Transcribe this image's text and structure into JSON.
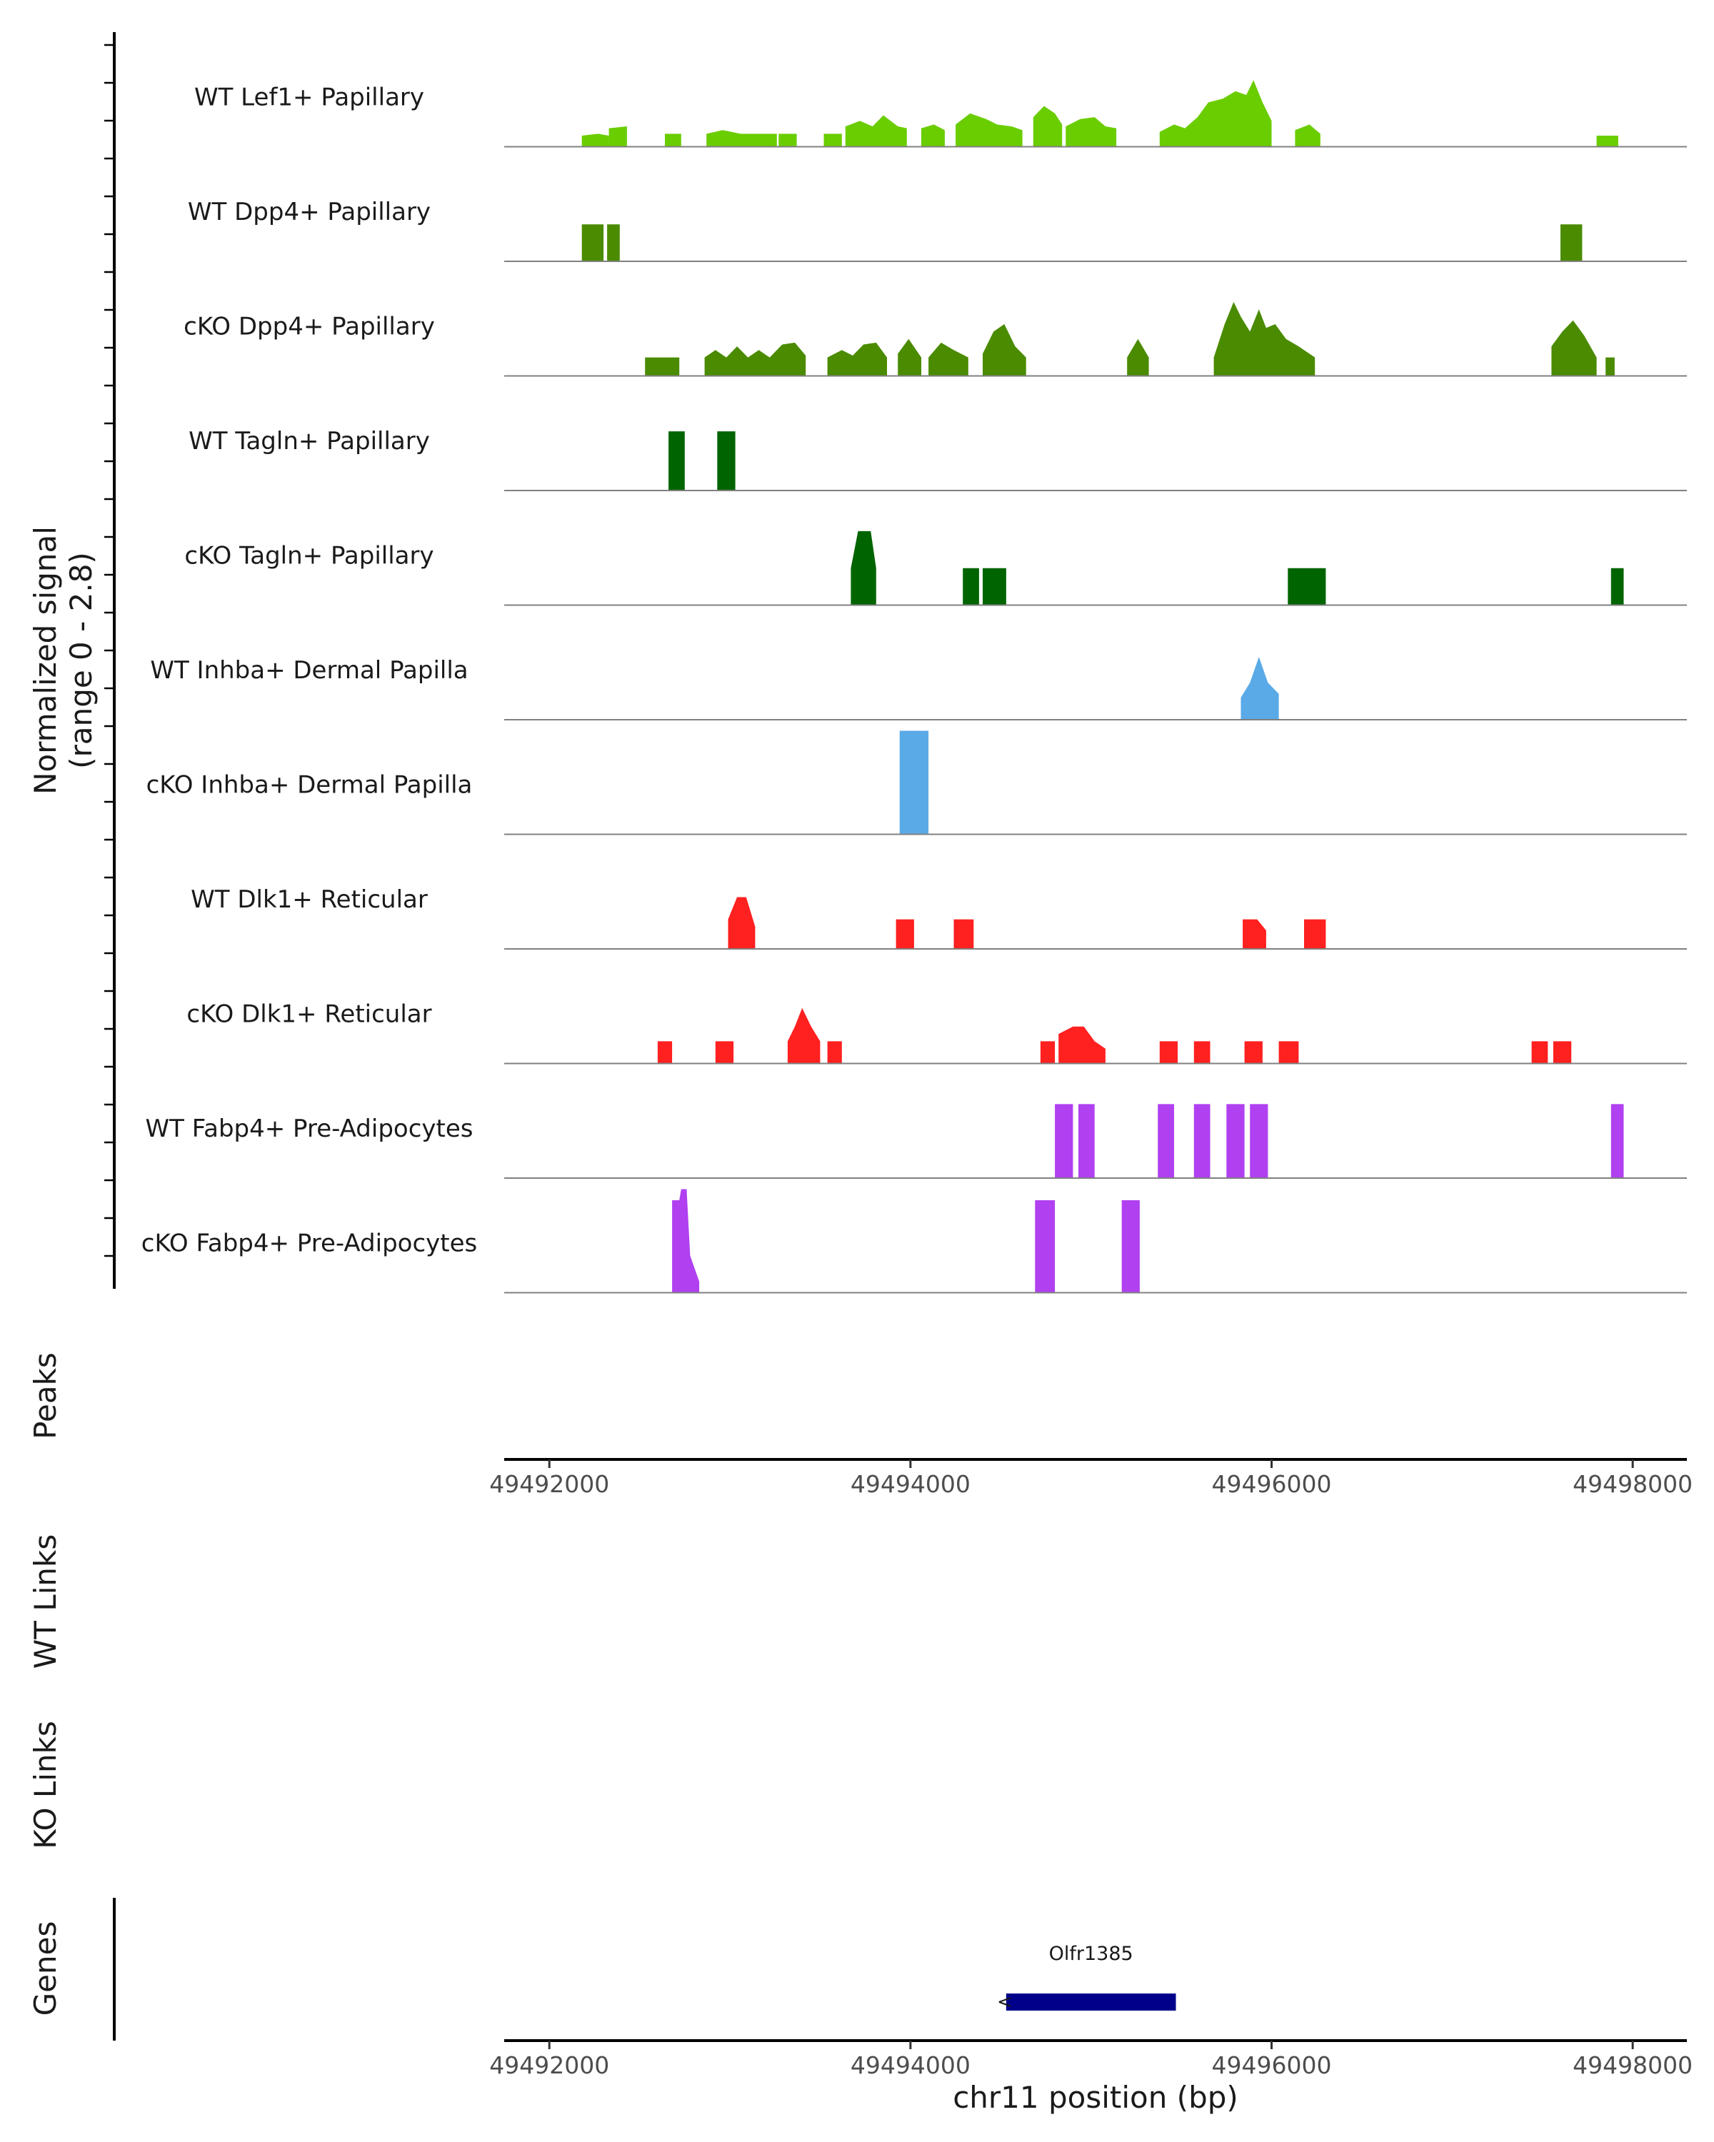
{
  "chart_data": {
    "type": "area",
    "title": "",
    "ylabel": "Normalized signal",
    "ylabel_range": "(range 0 - 2.8)",
    "ylim": [
      0,
      2.8
    ],
    "xlabel": "chr11 position (bp)",
    "xlim": [
      49491750,
      49498300
    ],
    "x_ticks": [
      49492000,
      49494000,
      49496000,
      49498000
    ],
    "x_tick_labels": [
      "49492000",
      "49494000",
      "49496000",
      "49498000"
    ],
    "colors": {
      "lef1": "#6ACD00",
      "dpp4": "#4A8B00",
      "tagln": "#006400",
      "inhba": "#5AAAE8",
      "dlk1": "#FF2020",
      "fabp4": "#B040F0",
      "gene": "#00008B",
      "baseline": "#808080"
    },
    "tracks": [
      {
        "name": "WT Lef1+ Papillary",
        "color_key": "lef1",
        "segments": [
          [
            [
              49492180,
              0.3
            ],
            [
              49492270,
              0.35
            ],
            [
              49492330,
              0.3
            ]
          ],
          [
            [
              49492330,
              0.5
            ],
            [
              49492430,
              0.55
            ]
          ],
          [
            [
              49492640,
              0.35
            ],
            [
              49492730,
              0.35
            ]
          ],
          [
            [
              49492870,
              0.35
            ],
            [
              49492960,
              0.45
            ],
            [
              49493060,
              0.35
            ],
            [
              49493180,
              0.35
            ],
            [
              49493260,
              0.35
            ]
          ],
          [
            [
              49493270,
              0.35
            ],
            [
              49493370,
              0.35
            ]
          ],
          [
            [
              49493520,
              0.35
            ],
            [
              49493620,
              0.35
            ]
          ],
          [
            [
              49493640,
              0.55
            ],
            [
              49493720,
              0.7
            ],
            [
              49493790,
              0.55
            ],
            [
              49493850,
              0.85
            ],
            [
              49493930,
              0.55
            ],
            [
              49493980,
              0.5
            ]
          ],
          [
            [
              49494060,
              0.5
            ],
            [
              49494130,
              0.6
            ],
            [
              49494190,
              0.45
            ]
          ],
          [
            [
              49494250,
              0.6
            ],
            [
              49494330,
              0.9
            ],
            [
              49494420,
              0.75
            ],
            [
              49494480,
              0.6
            ],
            [
              49494560,
              0.55
            ],
            [
              49494620,
              0.45
            ]
          ],
          [
            [
              49494680,
              0.8
            ],
            [
              49494740,
              1.1
            ],
            [
              49494800,
              0.9
            ],
            [
              49494840,
              0.6
            ]
          ],
          [
            [
              49494860,
              0.55
            ],
            [
              49494940,
              0.75
            ],
            [
              49495020,
              0.8
            ],
            [
              49495080,
              0.55
            ],
            [
              49495140,
              0.5
            ]
          ],
          [
            [
              49495380,
              0.4
            ],
            [
              49495460,
              0.6
            ],
            [
              49495520,
              0.5
            ],
            [
              49495590,
              0.8
            ],
            [
              49495650,
              1.2
            ],
            [
              49495730,
              1.3
            ],
            [
              49495800,
              1.5
            ],
            [
              49495860,
              1.4
            ],
            [
              49495900,
              1.8
            ],
            [
              49495950,
              1.2
            ],
            [
              49496000,
              0.7
            ]
          ],
          [
            [
              49496130,
              0.45
            ],
            [
              49496210,
              0.6
            ],
            [
              49496270,
              0.35
            ]
          ],
          [
            [
              49497800,
              0.3
            ],
            [
              49497920,
              0.3
            ]
          ]
        ]
      },
      {
        "name": "WT Dpp4+ Papillary",
        "color_key": "dpp4",
        "segments": [
          [
            [
              49492180,
              1.0
            ],
            [
              49492300,
              1.0
            ]
          ],
          [
            [
              49492320,
              1.0
            ],
            [
              49492390,
              1.0
            ]
          ],
          [
            [
              49497600,
              1.0
            ],
            [
              49497720,
              1.0
            ]
          ]
        ]
      },
      {
        "name": "cKO Dpp4+ Papillary",
        "color_key": "dpp4",
        "segments": [
          [
            [
              49492530,
              0.5
            ],
            [
              49492720,
              0.5
            ]
          ],
          [
            [
              49492860,
              0.5
            ],
            [
              49492920,
              0.7
            ],
            [
              49492980,
              0.5
            ],
            [
              49493040,
              0.8
            ],
            [
              49493100,
              0.5
            ],
            [
              49493160,
              0.7
            ],
            [
              49493220,
              0.5
            ],
            [
              49493290,
              0.85
            ],
            [
              49493360,
              0.9
            ],
            [
              49493420,
              0.55
            ]
          ],
          [
            [
              49493540,
              0.5
            ],
            [
              49493620,
              0.7
            ],
            [
              49493680,
              0.55
            ],
            [
              49493740,
              0.85
            ],
            [
              49493810,
              0.9
            ],
            [
              49493870,
              0.5
            ]
          ],
          [
            [
              49493930,
              0.6
            ],
            [
              49493990,
              1.0
            ],
            [
              49494060,
              0.5
            ]
          ],
          [
            [
              49494100,
              0.5
            ],
            [
              49494170,
              0.9
            ],
            [
              49494240,
              0.7
            ],
            [
              49494320,
              0.5
            ]
          ],
          [
            [
              49494400,
              0.6
            ],
            [
              49494460,
              1.2
            ],
            [
              49494520,
              1.4
            ],
            [
              49494580,
              0.8
            ],
            [
              49494640,
              0.5
            ]
          ],
          [
            [
              49495200,
              0.5
            ],
            [
              49495260,
              1.0
            ],
            [
              49495320,
              0.5
            ]
          ],
          [
            [
              49495680,
              0.5
            ],
            [
              49495740,
              1.4
            ],
            [
              49495790,
              2.0
            ],
            [
              49495830,
              1.6
            ],
            [
              49495880,
              1.2
            ],
            [
              49495930,
              1.8
            ],
            [
              49495970,
              1.3
            ],
            [
              49496020,
              1.4
            ],
            [
              49496080,
              1.0
            ],
            [
              49496150,
              0.8
            ],
            [
              49496240,
              0.5
            ]
          ],
          [
            [
              49497550,
              0.8
            ],
            [
              49497610,
              1.2
            ],
            [
              49497670,
              1.5
            ],
            [
              49497730,
              1.1
            ],
            [
              49497800,
              0.5
            ]
          ],
          [
            [
              49497850,
              0.5
            ],
            [
              49497900,
              0.5
            ]
          ]
        ]
      },
      {
        "name": "WT Tagln+ Papillary",
        "color_key": "tagln",
        "segments": [
          [
            [
              49492660,
              1.6
            ],
            [
              49492750,
              1.6
            ]
          ],
          [
            [
              49492930,
              1.6
            ],
            [
              49493030,
              1.6
            ]
          ]
        ]
      },
      {
        "name": "cKO Tagln+ Papillary",
        "color_key": "tagln",
        "segments": [
          [
            [
              49493670,
              1.0
            ],
            [
              49493710,
              2.0
            ],
            [
              49493780,
              2.0
            ],
            [
              49493810,
              1.0
            ]
          ],
          [
            [
              49494290,
              1.0
            ],
            [
              49494380,
              1.0
            ]
          ],
          [
            [
              49494400,
              1.0
            ],
            [
              49494530,
              1.0
            ]
          ],
          [
            [
              49496090,
              1.0
            ],
            [
              49496300,
              1.0
            ]
          ],
          [
            [
              49497880,
              1.0
            ],
            [
              49497950,
              1.0
            ]
          ]
        ]
      },
      {
        "name": "WT Inhba+ Dermal Papilla",
        "color_key": "inhba",
        "segments": [
          [
            [
              49495830,
              0.6
            ],
            [
              49495880,
              1.0
            ],
            [
              49495930,
              1.7
            ],
            [
              49495980,
              1.0
            ],
            [
              49496040,
              0.7
            ]
          ]
        ]
      },
      {
        "name": "cKO Inhba+ Dermal Papilla",
        "color_key": "inhba",
        "segments": [
          [
            [
              49493940,
              2.8
            ],
            [
              49494100,
              2.8
            ]
          ]
        ]
      },
      {
        "name": "WT Dlk1+ Reticular",
        "color_key": "dlk1",
        "segments": [
          [
            [
              49492990,
              0.8
            ],
            [
              49493040,
              1.4
            ],
            [
              49493090,
              1.4
            ],
            [
              49493140,
              0.6
            ]
          ],
          [
            [
              49493920,
              0.8
            ],
            [
              49494020,
              0.8
            ]
          ],
          [
            [
              49494240,
              0.8
            ],
            [
              49494350,
              0.8
            ]
          ],
          [
            [
              49495840,
              0.8
            ],
            [
              49495920,
              0.8
            ],
            [
              49495970,
              0.5
            ]
          ],
          [
            [
              49496180,
              0.8
            ],
            [
              49496300,
              0.8
            ]
          ]
        ]
      },
      {
        "name": "cKO Dlk1+ Reticular",
        "color_key": "dlk1",
        "segments": [
          [
            [
              49492600,
              0.6
            ],
            [
              49492680,
              0.6
            ]
          ],
          [
            [
              49492920,
              0.6
            ],
            [
              49493020,
              0.6
            ]
          ],
          [
            [
              49493320,
              0.6
            ],
            [
              49493360,
              1.0
            ],
            [
              49493400,
              1.5
            ],
            [
              49493450,
              1.0
            ],
            [
              49493500,
              0.6
            ]
          ],
          [
            [
              49493540,
              0.6
            ],
            [
              49493620,
              0.6
            ]
          ],
          [
            [
              49494720,
              0.6
            ],
            [
              49494800,
              0.6
            ]
          ],
          [
            [
              49494820,
              0.8
            ],
            [
              49494900,
              1.0
            ],
            [
              49494960,
              1.0
            ],
            [
              49495020,
              0.6
            ],
            [
              49495080,
              0.4
            ]
          ],
          [
            [
              49495380,
              0.6
            ],
            [
              49495480,
              0.6
            ]
          ],
          [
            [
              49495570,
              0.6
            ],
            [
              49495660,
              0.6
            ]
          ],
          [
            [
              49495850,
              0.6
            ],
            [
              49495950,
              0.6
            ]
          ],
          [
            [
              49496040,
              0.6
            ],
            [
              49496150,
              0.6
            ]
          ],
          [
            [
              49497440,
              0.6
            ],
            [
              49497530,
              0.6
            ]
          ],
          [
            [
              49497560,
              0.6
            ],
            [
              49497660,
              0.6
            ]
          ]
        ]
      },
      {
        "name": "WT Fabp4+ Pre-Adipocytes",
        "color_key": "fabp4",
        "segments": [
          [
            [
              49494800,
              2.0
            ],
            [
              49494900,
              2.0
            ]
          ],
          [
            [
              49494930,
              2.0
            ],
            [
              49495020,
              2.0
            ]
          ],
          [
            [
              49495370,
              2.0
            ],
            [
              49495460,
              2.0
            ]
          ],
          [
            [
              49495570,
              2.0
            ],
            [
              49495660,
              2.0
            ]
          ],
          [
            [
              49495750,
              2.0
            ],
            [
              49495850,
              2.0
            ]
          ],
          [
            [
              49495880,
              2.0
            ],
            [
              49495980,
              2.0
            ]
          ],
          [
            [
              49497880,
              2.0
            ],
            [
              49497950,
              2.0
            ]
          ]
        ]
      },
      {
        "name": "cKO Fabp4+ Pre-Adipocytes",
        "color_key": "fabp4",
        "segments": [
          [
            [
              49492680,
              2.5
            ],
            [
              49492720,
              2.5
            ],
            [
              49492730,
              2.8
            ],
            [
              49492760,
              2.8
            ],
            [
              49492780,
              1.0
            ],
            [
              49492830,
              0.3
            ]
          ],
          [
            [
              49494690,
              2.5
            ],
            [
              49494800,
              2.5
            ]
          ],
          [
            [
              49495170,
              2.5
            ],
            [
              49495270,
              2.5
            ]
          ]
        ]
      }
    ],
    "panels": [
      "Peaks",
      "WT Links",
      "KO Links",
      "Genes"
    ],
    "genes": [
      {
        "name": "Olfr1385",
        "start": 49494530,
        "end": 49495470,
        "strand": "-",
        "strand_symbol": "<"
      }
    ]
  }
}
